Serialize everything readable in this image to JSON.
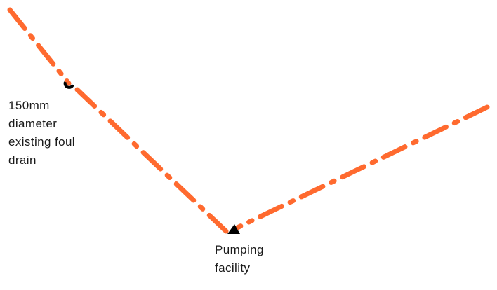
{
  "colors": {
    "drain_line": "#ff6a2f",
    "marker": "#000000",
    "text": "#1a1a1a",
    "background": "#ffffff"
  },
  "labels": {
    "existing_drain": [
      "150mm",
      "diameter",
      "existing foul",
      "drain"
    ],
    "pumping_facility": [
      "Pumping",
      "facility"
    ]
  },
  "line_style": "dash-dot"
}
